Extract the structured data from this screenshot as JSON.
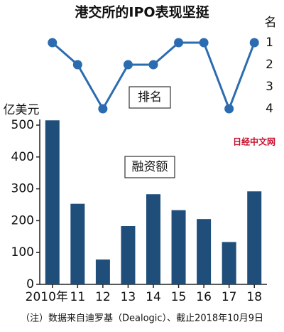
{
  "chart_data": {
    "type": "bar",
    "title": "港交所的IPO表现坚挺",
    "categories": [
      "2010年",
      "11",
      "12",
      "13",
      "14",
      "15",
      "16",
      "17",
      "18"
    ],
    "series": [
      {
        "name": "融资额",
        "color": "#1f4e7a",
        "values": [
          515,
          253,
          78,
          183,
          283,
          233,
          205,
          133,
          292
        ]
      },
      {
        "name": "排名",
        "type": "line",
        "axis": "y2",
        "color": "#2b6cb0",
        "values": [
          1,
          2,
          4,
          2,
          2,
          1,
          1,
          4,
          1
        ]
      }
    ],
    "ylabel": "亿美元",
    "ylim": [
      0,
      500
    ],
    "yticks": [
      0,
      100,
      200,
      300,
      400,
      500
    ],
    "y2label": "名",
    "y2lim": [
      4,
      1
    ],
    "y2ticks": [
      1,
      2,
      3,
      4
    ],
    "watermark": "日经中文网",
    "note": "（注）数据来自迪罗基（Dealogic）、截止2018年10月9日"
  }
}
